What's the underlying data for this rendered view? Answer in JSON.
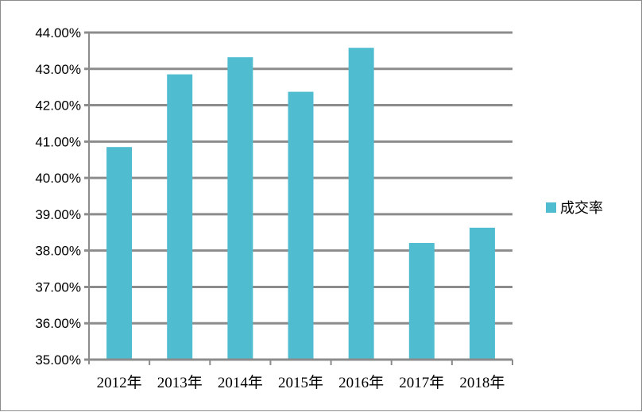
{
  "chart_data": {
    "type": "bar",
    "categories": [
      "2012年",
      "2013年",
      "2014年",
      "2015年",
      "2016年",
      "2017年",
      "2018年"
    ],
    "series": [
      {
        "name": "成交率",
        "values": [
          40.85,
          42.85,
          43.32,
          42.37,
          43.58,
          38.21,
          38.63
        ],
        "color": "#4fbcd0"
      }
    ],
    "ylim": [
      35,
      44
    ],
    "yticks": [
      35,
      36,
      37,
      38,
      39,
      40,
      41,
      42,
      43,
      44
    ],
    "ytick_labels": [
      "35.00%",
      "36.00%",
      "37.00%",
      "38.00%",
      "39.00%",
      "40.00%",
      "41.00%",
      "42.00%",
      "43.00%",
      "44.00%"
    ],
    "grid": true,
    "gridline_color": "#8c8c8c",
    "legend_position": "right",
    "title": "",
    "xlabel": "",
    "ylabel": ""
  }
}
